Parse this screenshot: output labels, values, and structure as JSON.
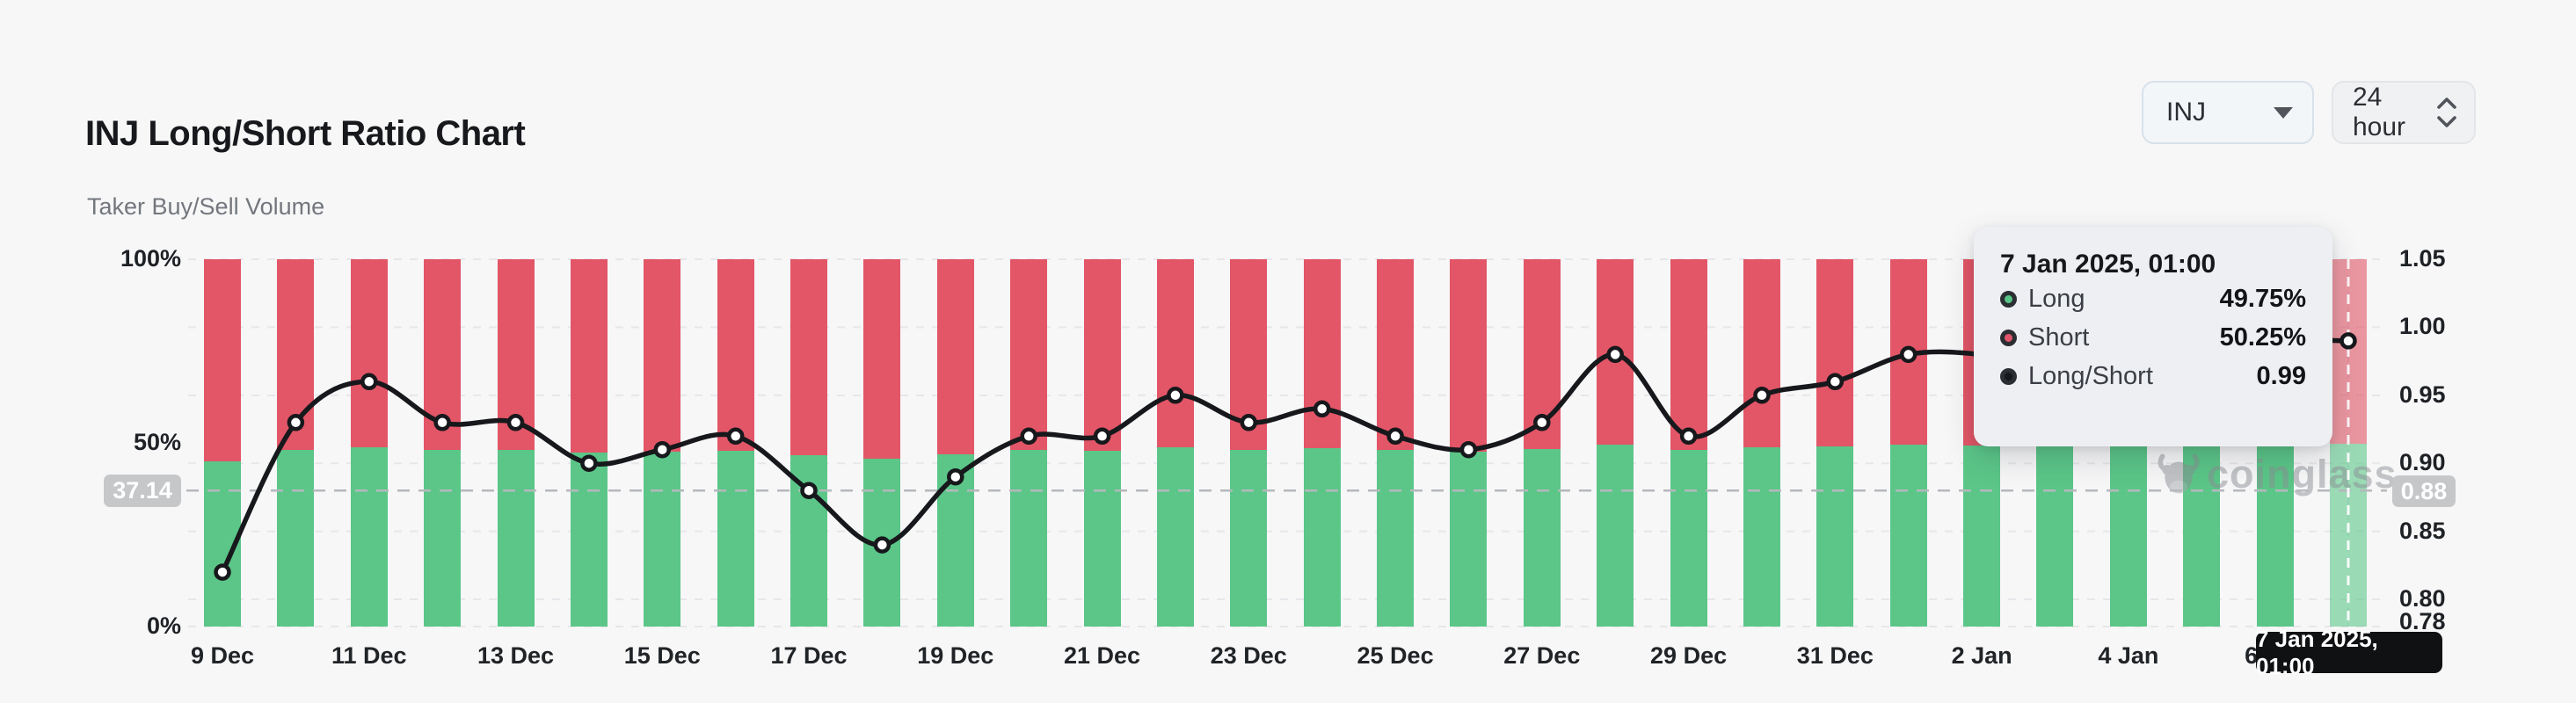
{
  "header": {
    "title": "INJ Long/Short Ratio Chart",
    "subtitle": "Taker Buy/Sell Volume"
  },
  "controls": {
    "symbol": {
      "value": "INJ",
      "icon": "caret-down"
    },
    "interval": {
      "value": "24 hour",
      "icon": "up-down-chevrons"
    }
  },
  "watermark": {
    "text": "coinglass"
  },
  "tooltip": {
    "title": "7 Jan 2025, 01:00",
    "rows": [
      {
        "label": "Long",
        "value": "49.75%",
        "color": "#57c586"
      },
      {
        "label": "Short",
        "value": "50.25%",
        "color": "#e0556a"
      },
      {
        "label": "Long/Short",
        "value": "0.99",
        "color": "#15171a"
      }
    ]
  },
  "crosshair": {
    "left_badge": "37.14",
    "right_badge": "0.88",
    "value": 0.88,
    "date_badge": "7 Jan 2025, 01:00"
  },
  "chart_data": {
    "type": "bar+line",
    "description": "100% stacked daily bars of taker buy (Long) vs sell (Short) volume share, with Long/Short ratio line plotted on the right axis; snapshots at 01:00 each day",
    "categories": [
      "9 Dec",
      "10 Dec",
      "11 Dec",
      "12 Dec",
      "13 Dec",
      "14 Dec",
      "15 Dec",
      "16 Dec",
      "17 Dec",
      "18 Dec",
      "19 Dec",
      "20 Dec",
      "21 Dec",
      "22 Dec",
      "23 Dec",
      "24 Dec",
      "25 Dec",
      "26 Dec",
      "27 Dec",
      "28 Dec",
      "29 Dec",
      "30 Dec",
      "31 Dec",
      "1 Jan",
      "2 Jan",
      "3 Jan",
      "4 Jan",
      "5 Jan",
      "6 Jan",
      "7 Jan"
    ],
    "series": [
      {
        "name": "Long",
        "type": "bar",
        "unit": "%",
        "color": "#5bc688",
        "values": [
          45.0,
          48.2,
          48.9,
          48.2,
          48.1,
          47.3,
          47.6,
          47.9,
          46.7,
          45.7,
          47.0,
          48.0,
          47.9,
          48.7,
          48.0,
          48.5,
          48.0,
          47.6,
          48.3,
          49.5,
          48.0,
          48.8,
          49.0,
          49.6,
          49.4,
          49.4,
          49.5,
          49.5,
          49.6,
          49.75
        ]
      },
      {
        "name": "Short",
        "type": "bar",
        "unit": "%",
        "color": "#e25667",
        "values": [
          55.0,
          51.8,
          51.1,
          51.8,
          51.9,
          52.7,
          52.4,
          52.1,
          53.3,
          54.3,
          53.0,
          52.0,
          52.1,
          51.3,
          52.0,
          51.5,
          52.0,
          52.4,
          51.7,
          50.5,
          52.0,
          51.2,
          51.0,
          50.4,
          50.6,
          50.6,
          50.5,
          50.5,
          50.4,
          50.25
        ]
      },
      {
        "name": "Long/Short",
        "type": "line",
        "axis": "right",
        "color": "#17181c",
        "values": [
          0.82,
          0.93,
          0.96,
          0.93,
          0.93,
          0.9,
          0.91,
          0.92,
          0.88,
          0.84,
          0.89,
          0.92,
          0.92,
          0.95,
          0.93,
          0.94,
          0.92,
          0.91,
          0.93,
          0.98,
          0.92,
          0.95,
          0.96,
          0.98,
          0.98,
          0.97,
          0.98,
          0.98,
          0.99,
          0.99
        ]
      }
    ],
    "x_tick_labels": [
      "9 Dec",
      "11 Dec",
      "13 Dec",
      "15 Dec",
      "17 Dec",
      "19 Dec",
      "21 Dec",
      "23 Dec",
      "25 Dec",
      "27 Dec",
      "29 Dec",
      "31 Dec",
      "2 Jan",
      "4 Jan",
      "6 Jan"
    ],
    "left_axis": {
      "ticks": [
        "100%",
        "50%",
        "0%"
      ],
      "tick_values": [
        100,
        50,
        0
      ],
      "range": [
        0,
        100
      ]
    },
    "right_axis": {
      "ticks": [
        "1.05",
        "1.00",
        "0.95",
        "0.90",
        "0.85",
        "0.80",
        "0.78"
      ],
      "tick_values": [
        1.05,
        1.0,
        0.95,
        0.9,
        0.85,
        0.8,
        0.78
      ],
      "range": [
        0.78,
        1.05
      ],
      "gridline_values": [
        1.05,
        1.0,
        0.95,
        0.9,
        0.85,
        0.8
      ]
    },
    "highlighted_index": 29,
    "grid": "dashed",
    "legend_position": "tooltip-only"
  }
}
